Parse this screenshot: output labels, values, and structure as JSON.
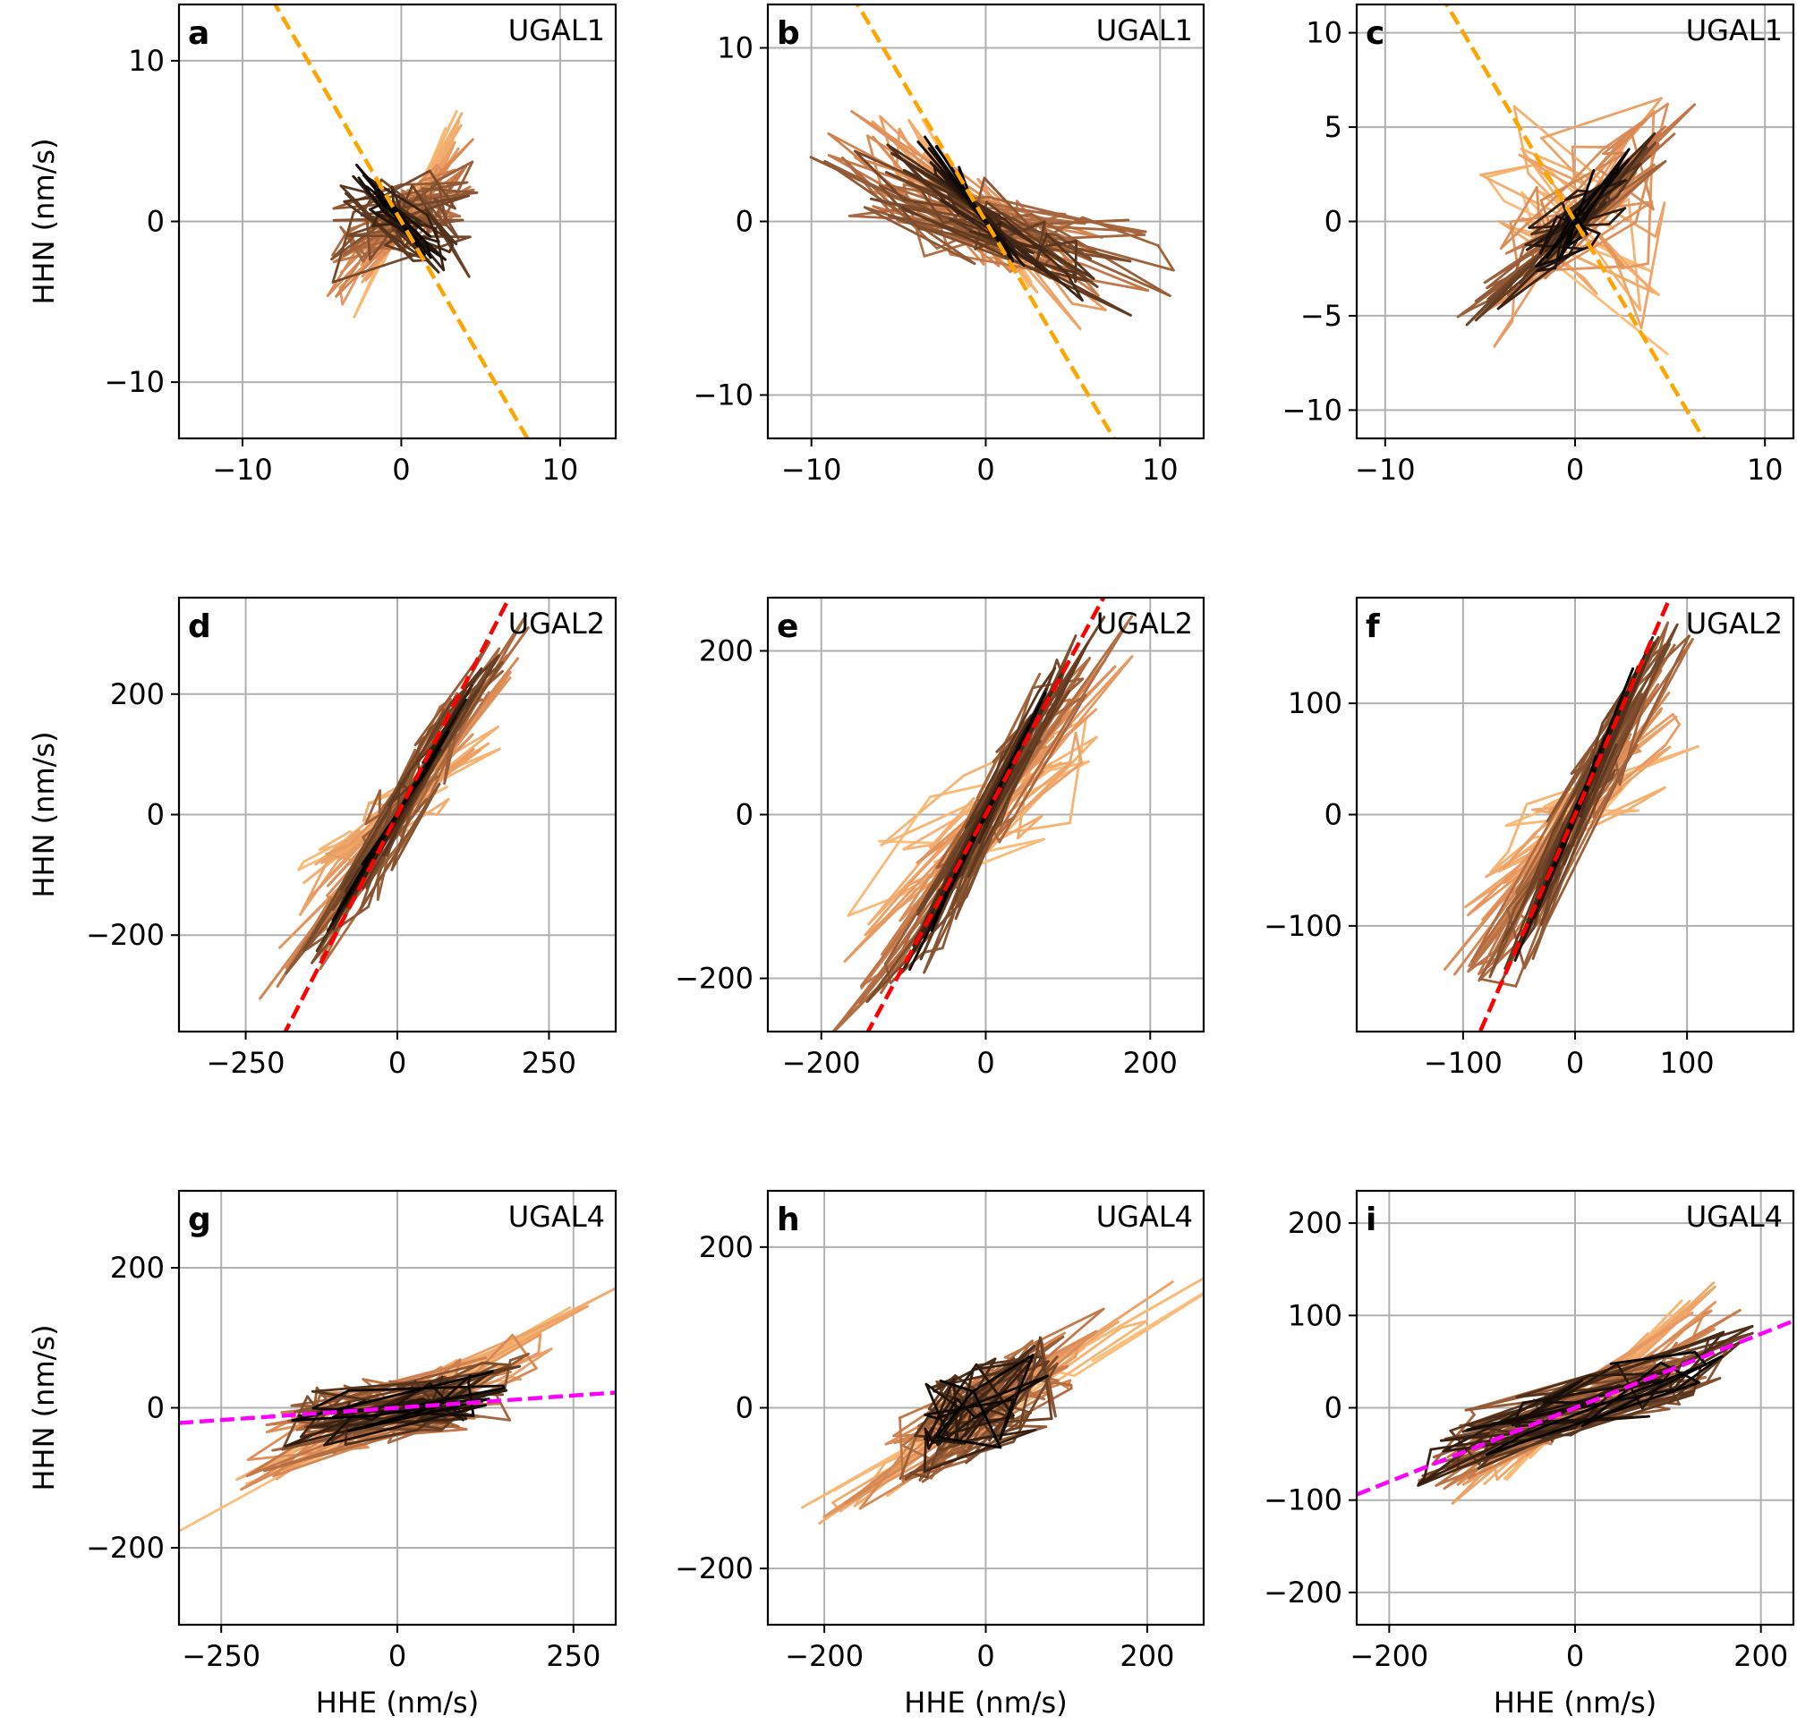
{
  "colors": {
    "fit_ugal1": "#ffa500",
    "fit_ugal2": "#ff0000",
    "fit_ugal4": "#ff00ff",
    "grid": "#b0b0b0",
    "trace_ramp": [
      "#fcbf7a",
      "#e89860",
      "#c27648",
      "#8a5532",
      "#4e2f1a",
      "#000000"
    ]
  },
  "chart_data": [
    {
      "type": "line",
      "panel": "a",
      "station": "UGAL1",
      "xlim": [
        -14,
        13.5
      ],
      "ylim": [
        -13.5,
        13.5
      ],
      "xticks": [
        -10,
        0,
        10
      ],
      "xtick_labels": [
        "−10",
        "0",
        "10"
      ],
      "yticks": [
        -10,
        0,
        10
      ],
      "ytick_labels": [
        "−10",
        "0",
        "10"
      ],
      "xlabel": "",
      "ylabel": "HHN (nm/s)",
      "fit_line": {
        "slope": -1.7,
        "x": [
          -14,
          13.5
        ],
        "color": "#ffa500"
      },
      "trace": {
        "seed": 11,
        "n": 220,
        "amp_early": [
          3,
          6.5,
          0.6
        ],
        "amp_late": [
          5.5,
          3.2,
          0.3
        ],
        "amp_end": [
          2.2,
          3.0,
          -0.6
        ]
      }
    },
    {
      "type": "line",
      "panel": "b",
      "station": "UGAL1",
      "xlim": [
        -12.5,
        12.5
      ],
      "ylim": [
        -12.5,
        12.5
      ],
      "xticks": [
        -10,
        0,
        10
      ],
      "xtick_labels": [
        "−10",
        "0",
        "10"
      ],
      "yticks": [
        -10,
        0,
        10
      ],
      "ytick_labels": [
        "−10",
        "0",
        "10"
      ],
      "xlabel": "",
      "ylabel": "",
      "fit_line": {
        "slope": -1.7,
        "x": [
          -12.5,
          12.5
        ],
        "color": "#ffa500"
      },
      "trace": {
        "seed": 22,
        "n": 220,
        "amp_early": [
          4,
          7,
          -0.6
        ],
        "amp_late": [
          11,
          3.5,
          -0.15
        ],
        "amp_end": [
          2.8,
          5,
          -0.7
        ]
      }
    },
    {
      "type": "line",
      "panel": "c",
      "station": "UGAL1",
      "xlim": [
        -11.5,
        11.5
      ],
      "ylim": [
        -11.5,
        11.5
      ],
      "xticks": [
        -10,
        0,
        10
      ],
      "xtick_labels": [
        "−10",
        "0",
        "10"
      ],
      "yticks": [
        -10,
        -5,
        0,
        5,
        10
      ],
      "ytick_labels": [
        "−10",
        "−5",
        "0",
        "5",
        "10"
      ],
      "xlabel": "",
      "ylabel": "",
      "fit_line": {
        "slope": -1.7,
        "x": [
          -11.5,
          11.5
        ],
        "color": "#ffa500"
      },
      "trace": {
        "seed": 33,
        "n": 220,
        "amp_early": [
          5,
          6,
          -0.3
        ],
        "amp_late": [
          5.5,
          5,
          0.8
        ],
        "amp_end": [
          2.5,
          3,
          0.2
        ]
      }
    },
    {
      "type": "line",
      "panel": "d",
      "station": "UGAL2",
      "xlim": [
        -360,
        360
      ],
      "ylim": [
        -360,
        360
      ],
      "xticks": [
        -250,
        0,
        250
      ],
      "xtick_labels": [
        "−250",
        "0",
        "250"
      ],
      "yticks": [
        -200,
        0,
        200
      ],
      "ytick_labels": [
        "−200",
        "0",
        "200"
      ],
      "xlabel": "",
      "ylabel": "HHN (nm/s)",
      "fit_line": {
        "slope": 1.95,
        "x": [
          -360,
          360
        ],
        "color": "#ff0000"
      },
      "trace": {
        "seed": 44,
        "n": 220,
        "amp_early": [
          160,
          90,
          0.3
        ],
        "amp_late": [
          170,
          320,
          0.85
        ],
        "amp_end": [
          90,
          150,
          0.6
        ]
      }
    },
    {
      "type": "line",
      "panel": "e",
      "station": "UGAL2",
      "xlim": [
        -265,
        265
      ],
      "ylim": [
        -265,
        265
      ],
      "xticks": [
        -200,
        0,
        200
      ],
      "xtick_labels": [
        "−200",
        "0",
        "200"
      ],
      "yticks": [
        -200,
        0,
        200
      ],
      "ytick_labels": [
        "−200",
        "0",
        "200"
      ],
      "xlabel": "",
      "ylabel": "",
      "fit_line": {
        "slope": 1.85,
        "x": [
          -265,
          265
        ],
        "color": "#ff0000"
      },
      "trace": {
        "seed": 55,
        "n": 220,
        "amp_early": [
          150,
          90,
          0.25
        ],
        "amp_late": [
          140,
          260,
          0.85
        ],
        "amp_end": [
          70,
          150,
          0.6
        ]
      }
    },
    {
      "type": "line",
      "panel": "f",
      "station": "UGAL2",
      "xlim": [
        -195,
        195
      ],
      "ylim": [
        -195,
        195
      ],
      "xticks": [
        -100,
        0,
        100
      ],
      "xtick_labels": [
        "−100",
        "0",
        "100"
      ],
      "yticks": [
        -100,
        0,
        100
      ],
      "ytick_labels": [
        "−100",
        "0",
        "100"
      ],
      "xlabel": "",
      "ylabel": "",
      "fit_line": {
        "slope": 2.3,
        "x": [
          -195,
          195
        ],
        "color": "#ff0000"
      },
      "trace": {
        "seed": 66,
        "n": 220,
        "amp_early": [
          100,
          45,
          0.3
        ],
        "amp_late": [
          85,
          180,
          0.85
        ],
        "amp_end": [
          45,
          120,
          0.6
        ]
      }
    },
    {
      "type": "line",
      "panel": "g",
      "station": "UGAL4",
      "xlim": [
        -310,
        310
      ],
      "ylim": [
        -310,
        310
      ],
      "xticks": [
        -250,
        0,
        250
      ],
      "xtick_labels": [
        "−250",
        "0",
        "250"
      ],
      "yticks": [
        -200,
        0,
        200
      ],
      "ytick_labels": [
        "−200",
        "0",
        "200"
      ],
      "xlabel": "HHE (nm/s)",
      "ylabel": "HHN (nm/s)",
      "fit_line": {
        "slope": 0.07,
        "x": [
          -310,
          310
        ],
        "color": "#ff00ff"
      },
      "trace": {
        "seed": 77,
        "n": 220,
        "amp_early": [
          280,
          160,
          0.6
        ],
        "amp_late": [
          180,
          60,
          0.15
        ],
        "amp_end": [
          150,
          45,
          0.1
        ]
      }
    },
    {
      "type": "line",
      "panel": "h",
      "station": "UGAL4",
      "xlim": [
        -270,
        270
      ],
      "ylim": [
        -270,
        270
      ],
      "xticks": [
        -200,
        0,
        200
      ],
      "xtick_labels": [
        "−200",
        "0",
        "200"
      ],
      "yticks": [
        -200,
        0,
        200
      ],
      "ytick_labels": [
        "−200",
        "0",
        "200"
      ],
      "xlabel": "HHE (nm/s)",
      "ylabel": "",
      "fit_line": null,
      "trace": {
        "seed": 88,
        "n": 220,
        "amp_early": [
          250,
          170,
          0.8
        ],
        "amp_late": [
          100,
          80,
          0.2
        ],
        "amp_end": [
          80,
          70,
          0.1
        ]
      }
    },
    {
      "type": "line",
      "panel": "i",
      "station": "UGAL4",
      "xlim": [
        -235,
        235
      ],
      "ylim": [
        -235,
        235
      ],
      "xticks": [
        -200,
        0,
        200
      ],
      "xtick_labels": [
        "−200",
        "0",
        "200"
      ],
      "yticks": [
        -200,
        -100,
        0,
        100,
        200
      ],
      "ytick_labels": [
        "−200",
        "−100",
        "0",
        "100",
        "200"
      ],
      "xlabel": "HHE (nm/s)",
      "ylabel": "",
      "fit_line": {
        "slope": 0.4,
        "x": [
          -235,
          235
        ],
        "color": "#ff00ff"
      },
      "trace": {
        "seed": 99,
        "n": 220,
        "amp_early": [
          110,
          120,
          0.6
        ],
        "amp_late": [
          170,
          70,
          0.35
        ],
        "amp_end": [
          190,
          85,
          0.4
        ]
      }
    }
  ]
}
